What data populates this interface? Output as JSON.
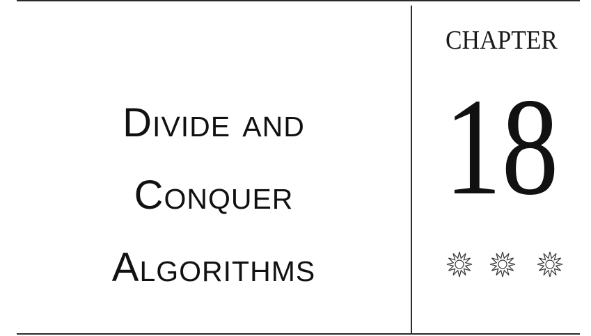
{
  "title": {
    "lines": [
      "Divide and",
      "Conquer",
      "Algorithms"
    ]
  },
  "chapter": {
    "label": "CHAPTER",
    "number": "18"
  },
  "ornaments": [
    {
      "icon": "star-ornament-icon"
    },
    {
      "icon": "star-ornament-icon"
    },
    {
      "icon": "star-ornament-icon"
    }
  ],
  "colors": {
    "text": "#111111",
    "rule": "#2a2a2a",
    "background": "#ffffff"
  }
}
